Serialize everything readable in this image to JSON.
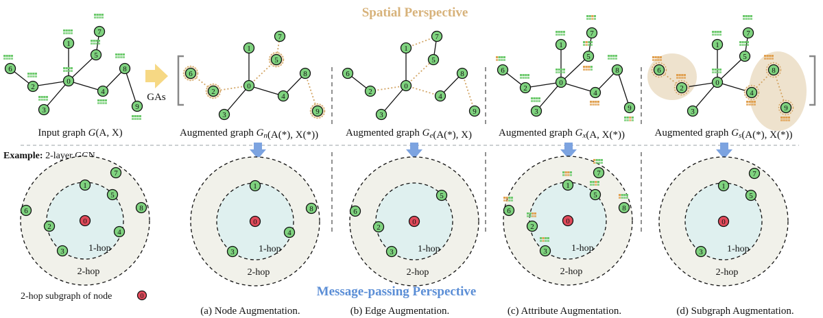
{
  "titles": {
    "spatial": "Spatial Perspective",
    "message_passing": "Message-passing Perspective"
  },
  "colors": {
    "spatial_title": "#d7b27a",
    "message_title": "#5b8ed6",
    "node_fill": "#7fd37f",
    "center_node_fill": "#e04a5a",
    "drop_fill": "#f1dfc4",
    "drop_edge": "#d2a464",
    "feature_green": "#6cc96c",
    "feature_orange": "#e0a050",
    "arrow_blue": "#7ca3e0",
    "arrow_gold": "#f6d884",
    "inner_ring": "#dff0ef",
    "outer_ring": "#f1f1ea"
  },
  "gas_label": "GAs",
  "graph_captions": [
    {
      "prefix": "Input graph ",
      "sym": "G",
      "sub": "",
      "args": "(A, X)"
    },
    {
      "prefix": "Augmented graph ",
      "sym": "G",
      "sub": "n",
      "args": "(A(*), X(*))"
    },
    {
      "prefix": "Augmented graph ",
      "sym": "G",
      "sub": "e",
      "args": "(A(*), X)"
    },
    {
      "prefix": "Augmented graph ",
      "sym": "G",
      "sub": "x",
      "args": "(A, X(*))"
    },
    {
      "prefix": "Augmented graph ",
      "sym": "G",
      "sub": "s",
      "args": "(A(*), X(*))"
    }
  ],
  "example": {
    "bold": "Example:",
    "text": " 2-layer GCN"
  },
  "hops": {
    "one": "1-hop",
    "two": "2-hop"
  },
  "subgraph_label": "2-hop subgraph of node",
  "center_node": "0",
  "augmentations": [
    "(a) Node Augmentation.",
    "(b) Edge Augmentation.",
    "(c) Attribute Augmentation.",
    "(d) Subgraph Augmentation."
  ],
  "node_ids": [
    "0",
    "1",
    "2",
    "3",
    "4",
    "5",
    "6",
    "7",
    "8",
    "9"
  ]
}
